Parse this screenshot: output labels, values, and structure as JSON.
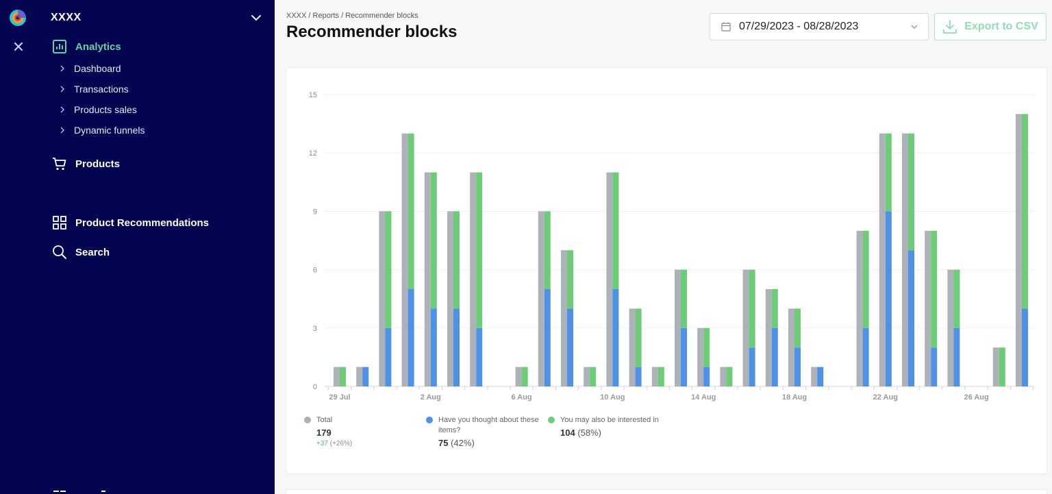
{
  "sidebar": {
    "account_name": "XXXX",
    "active_section": "Analytics",
    "sections": [
      {
        "label": "Analytics",
        "icon": "bar-chart-icon"
      },
      {
        "label": "Products",
        "icon": "cart-icon"
      },
      {
        "label": "Product Recommendations",
        "icon": "grid-icon"
      },
      {
        "label": "Search",
        "icon": "search-icon"
      }
    ],
    "analytics_items": [
      "Dashboard",
      "Transactions",
      "Products sales",
      "Dynamic funnels"
    ],
    "colors": {
      "background": "#030550",
      "active": "#5fd4a3"
    }
  },
  "header": {
    "breadcrumb": "XXXX / Reports / Recommender blocks",
    "title": "Recommender blocks",
    "date_range": "07/29/2023 - 08/28/2023",
    "export_label": "Export to CSV"
  },
  "legend": {
    "total": {
      "label": "Total",
      "value": "179",
      "delta": "+37",
      "delta_pct": "(+26%)"
    },
    "series1": {
      "label": "Have you thought about these items?",
      "value": "75",
      "pct": "(42%)"
    },
    "series2": {
      "label": "You may also be interested in",
      "value": "104",
      "pct": "(58%)"
    }
  },
  "chart_data": {
    "type": "bar",
    "ylim": [
      0,
      15
    ],
    "yticks": [
      "0",
      "3",
      "6",
      "9",
      "12",
      "15"
    ],
    "x": [
      "Jul 29",
      "Jul 30",
      "Jul 31",
      "Aug 1",
      "Aug 2",
      "Aug 3",
      "Aug 4",
      "Aug 5",
      "Aug 6",
      "Aug 7",
      "Aug 8",
      "Aug 9",
      "Aug 10",
      "Aug 11",
      "Aug 12",
      "Aug 13",
      "Aug 14",
      "Aug 15",
      "Aug 16",
      "Aug 17",
      "Aug 18",
      "Aug 19",
      "Aug 20",
      "Aug 21",
      "Aug 22",
      "Aug 23",
      "Aug 24",
      "Aug 25",
      "Aug 26",
      "Aug 27",
      "Aug 28"
    ],
    "xtick_labels": [
      "29 Jul",
      "2 Aug",
      "6 Aug",
      "10 Aug",
      "14 Aug",
      "18 Aug",
      "22 Aug",
      "26 Aug"
    ],
    "grid": true,
    "legend_position": "bottom-left",
    "series": [
      {
        "name": "Total",
        "color": "#adb1b8",
        "values": [
          1,
          1,
          9,
          13,
          11,
          9,
          11,
          0,
          1,
          9,
          7,
          1,
          11,
          4,
          1,
          6,
          3,
          1,
          6,
          5,
          4,
          1,
          0,
          8,
          13,
          13,
          8,
          6,
          0,
          2,
          14
        ]
      },
      {
        "name": "Have you thought about these items?",
        "color": "#4e91e6",
        "values": [
          0,
          1,
          3,
          5,
          4,
          4,
          3,
          0,
          0,
          5,
          4,
          0,
          5,
          1,
          0,
          3,
          1,
          0,
          2,
          3,
          2,
          1,
          0,
          3,
          9,
          7,
          2,
          3,
          0,
          0,
          4
        ]
      },
      {
        "name": "You may also be interested in",
        "color": "#6ccc77",
        "values": [
          1,
          0,
          6,
          8,
          7,
          5,
          8,
          0,
          1,
          4,
          3,
          1,
          6,
          3,
          1,
          3,
          2,
          1,
          4,
          2,
          2,
          0,
          0,
          5,
          4,
          6,
          6,
          3,
          0,
          2,
          10
        ]
      }
    ]
  }
}
